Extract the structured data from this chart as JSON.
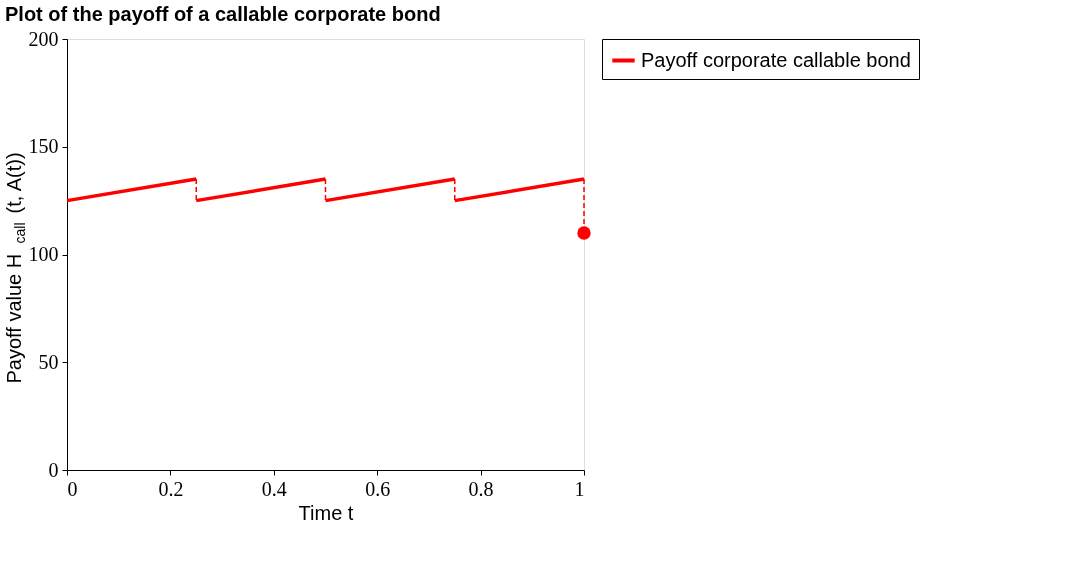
{
  "chart_data": {
    "type": "line",
    "title": "Plot of the payoff of a callable corporate bond",
    "xlabel": "Time t",
    "ylabel": "Payoff value H$_{call}$(t, A(t))",
    "xlim": [
      0,
      1
    ],
    "xticks": [
      0,
      0.2,
      0.4,
      0.6,
      0.8,
      1
    ],
    "ylim": [
      0,
      200
    ],
    "yticks": [
      0,
      50,
      100,
      150,
      200
    ],
    "grid": false,
    "legend": "top right",
    "series": [
      {
        "name": "Payoff corporate callable bond",
        "color": "#ff0000",
        "line_style": "solid",
        "x": [
          0,
          0.25
        ],
        "values": [
          125,
          135
        ]
      },
      {
        "color": "#ff0000",
        "line_style": "solid",
        "x": [
          0.25,
          0.5
        ],
        "values": [
          125,
          135
        ]
      },
      {
        "color": "#ff0000",
        "line_style": "solid",
        "x": [
          0.5,
          0.75
        ],
        "values": [
          125,
          135
        ]
      },
      {
        "color": "#ff0000",
        "line_style": "solid",
        "x": [
          0.75,
          1
        ],
        "values": [
          125,
          135
        ]
      },
      {
        "color": "#ff0000",
        "line_style": "dashed",
        "x": [
          0.25,
          0.25
        ],
        "values": [
          135,
          125
        ]
      },
      {
        "color": "#ff0000",
        "line_style": "dashed",
        "x": [
          0.5,
          0.5
        ],
        "values": [
          135,
          125
        ]
      },
      {
        "color": "#ff0000",
        "line_style": "dashed",
        "x": [
          0.75,
          0.75
        ],
        "values": [
          135,
          125
        ]
      },
      {
        "color": "#ff0000",
        "line_style": "dashed",
        "x": [
          1,
          1
        ],
        "values": [
          135,
          110
        ]
      },
      {
        "color": "#ff0000",
        "type": "scatter",
        "marker": "circle",
        "x": [
          1
        ],
        "values": [
          110
        ]
      }
    ]
  }
}
